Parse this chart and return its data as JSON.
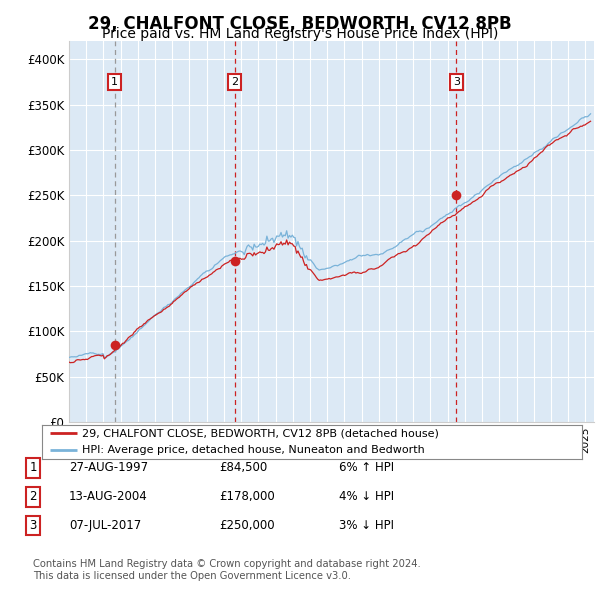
{
  "title": "29, CHALFONT CLOSE, BEDWORTH, CV12 8PB",
  "subtitle": "Price paid vs. HM Land Registry's House Price Index (HPI)",
  "title_fontsize": 12,
  "subtitle_fontsize": 10,
  "background_color": "#ffffff",
  "plot_bg_color": "#dce9f5",
  "grid_color": "#ffffff",
  "ylabel_ticks": [
    "£0",
    "£50K",
    "£100K",
    "£150K",
    "£200K",
    "£250K",
    "£300K",
    "£350K",
    "£400K"
  ],
  "ytick_values": [
    0,
    50000,
    100000,
    150000,
    200000,
    250000,
    300000,
    350000,
    400000
  ],
  "ylim": [
    0,
    420000
  ],
  "xlim_start": 1995.0,
  "xlim_end": 2025.5,
  "hpi_color": "#7ab3d9",
  "price_color": "#cc2222",
  "sale_marker_color": "#cc2222",
  "vline_color": "#cc2222",
  "annotation_box_color": "#cc2222",
  "sales": [
    {
      "num": 1,
      "year": 1997.65,
      "price": 84500,
      "label": "1"
    },
    {
      "num": 2,
      "year": 2004.62,
      "price": 178000,
      "label": "2"
    },
    {
      "num": 3,
      "year": 2017.51,
      "price": 250000,
      "label": "3"
    }
  ],
  "legend_entries": [
    "29, CHALFONT CLOSE, BEDWORTH, CV12 8PB (detached house)",
    "HPI: Average price, detached house, Nuneaton and Bedworth"
  ],
  "table_rows": [
    {
      "num": "1",
      "date": "27-AUG-1997",
      "price": "£84,500",
      "hpi": "6% ↑ HPI"
    },
    {
      "num": "2",
      "date": "13-AUG-2004",
      "price": "£178,000",
      "hpi": "4% ↓ HPI"
    },
    {
      "num": "3",
      "date": "07-JUL-2017",
      "price": "£250,000",
      "hpi": "3% ↓ HPI"
    }
  ],
  "footer": "Contains HM Land Registry data © Crown copyright and database right 2024.\nThis data is licensed under the Open Government Licence v3.0."
}
